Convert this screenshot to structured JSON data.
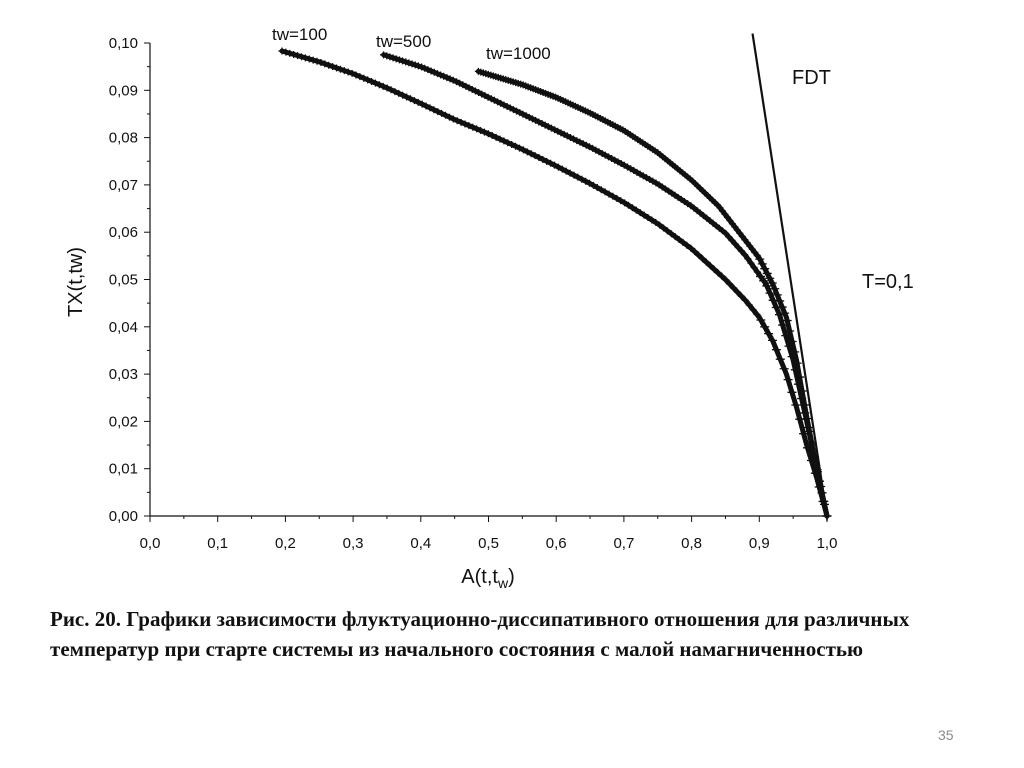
{
  "chart_data": {
    "type": "scatter",
    "xlabel": "A(t,t_w)",
    "xlabel_main": "A(t,t",
    "xlabel_sub": "w",
    "xlabel_close": ")",
    "ylabel": "TX(t,tw)",
    "xlim": [
      0.0,
      1.0
    ],
    "ylim": [
      0.0,
      0.1
    ],
    "x_ticks": [
      "0,0",
      "0,1",
      "0,2",
      "0,3",
      "0,4",
      "0,5",
      "0,6",
      "0,7",
      "0,8",
      "0,9",
      "1,0"
    ],
    "y_ticks": [
      "0,00",
      "0,01",
      "0,02",
      "0,03",
      "0,04",
      "0,05",
      "0,06",
      "0,07",
      "0,08",
      "0,09",
      "0,10"
    ],
    "grid": false,
    "series": [
      {
        "name": "tw=100",
        "points": [
          [
            0.195,
            0.0983
          ],
          [
            0.25,
            0.096
          ],
          [
            0.3,
            0.0935
          ],
          [
            0.35,
            0.0905
          ],
          [
            0.4,
            0.0872
          ],
          [
            0.45,
            0.0838
          ],
          [
            0.5,
            0.0808
          ],
          [
            0.55,
            0.0775
          ],
          [
            0.6,
            0.074
          ],
          [
            0.65,
            0.0703
          ],
          [
            0.7,
            0.0663
          ],
          [
            0.75,
            0.0618
          ],
          [
            0.8,
            0.0565
          ],
          [
            0.85,
            0.05
          ],
          [
            0.88,
            0.0455
          ],
          [
            0.9,
            0.042
          ],
          [
            0.92,
            0.037
          ],
          [
            0.94,
            0.03
          ],
          [
            0.955,
            0.023
          ],
          [
            0.97,
            0.015
          ],
          [
            0.985,
            0.008
          ],
          [
            1.0,
            0.0
          ]
        ]
      },
      {
        "name": "tw=500",
        "points": [
          [
            0.345,
            0.0975
          ],
          [
            0.4,
            0.095
          ],
          [
            0.45,
            0.092
          ],
          [
            0.5,
            0.0885
          ],
          [
            0.55,
            0.085
          ],
          [
            0.6,
            0.0815
          ],
          [
            0.65,
            0.078
          ],
          [
            0.7,
            0.0742
          ],
          [
            0.75,
            0.0702
          ],
          [
            0.8,
            0.0655
          ],
          [
            0.85,
            0.0598
          ],
          [
            0.88,
            0.055
          ],
          [
            0.91,
            0.049
          ],
          [
            0.93,
            0.0425
          ],
          [
            0.95,
            0.033
          ],
          [
            0.97,
            0.02
          ],
          [
            0.985,
            0.01
          ],
          [
            1.0,
            0.0
          ]
        ]
      },
      {
        "name": "tw=1000",
        "points": [
          [
            0.485,
            0.094
          ],
          [
            0.55,
            0.0912
          ],
          [
            0.6,
            0.0885
          ],
          [
            0.65,
            0.0852
          ],
          [
            0.7,
            0.0815
          ],
          [
            0.75,
            0.0768
          ],
          [
            0.8,
            0.071
          ],
          [
            0.84,
            0.0655
          ],
          [
            0.87,
            0.06
          ],
          [
            0.9,
            0.0545
          ],
          [
            0.92,
            0.049
          ],
          [
            0.94,
            0.042
          ],
          [
            0.955,
            0.033
          ],
          [
            0.97,
            0.021
          ],
          [
            0.985,
            0.01
          ],
          [
            1.0,
            0.0
          ]
        ]
      },
      {
        "name": "FDT",
        "type": "line",
        "points": [
          [
            0.89,
            0.102
          ],
          [
            1.0,
            0.0
          ]
        ]
      }
    ],
    "annotations": {
      "fdt": "FDT",
      "temperature": "T=0,1"
    }
  },
  "caption": "Рис. 20. Графики зависимости флуктуационно-диссипативного отношения для различных температур при старте системы из начального состояния с малой намагниченностью",
  "slide_number": "35"
}
